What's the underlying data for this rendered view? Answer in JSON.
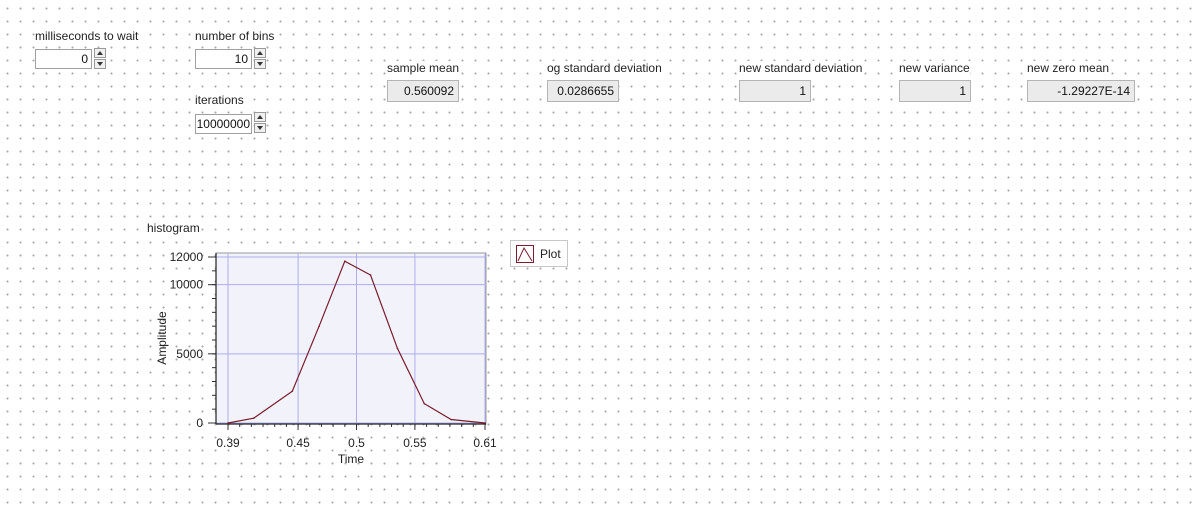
{
  "controls": {
    "ms_wait": {
      "label": "milliseconds to wait",
      "value": "0"
    },
    "num_bins": {
      "label": "number of bins",
      "value": "10"
    },
    "iterations": {
      "label": "iterations",
      "value": "10000000"
    }
  },
  "indicators": {
    "sample_mean": {
      "label": "sample mean",
      "value": "0.560092"
    },
    "og_std": {
      "label": "og standard deviation",
      "value": "0.0286655"
    },
    "new_std": {
      "label": "new standard deviation",
      "value": "1"
    },
    "new_var": {
      "label": "new variance",
      "value": "1"
    },
    "new_zero_mean": {
      "label": "new zero mean",
      "value": "-1.29227E-14"
    }
  },
  "histogram": {
    "label": "histogram"
  },
  "legend": {
    "label": "Plot",
    "icon": "plot-line-icon"
  },
  "colors": {
    "plot_line": "#7a1c2c",
    "plot_bg": "#f2f2fb",
    "grid": "#aeaeee"
  },
  "chart_data": {
    "type": "line",
    "xlabel": "Time",
    "ylabel": "Amplitude",
    "xlim": [
      0.39,
      0.61
    ],
    "ylim": [
      0,
      12000
    ],
    "x_ticks": [
      "0.39",
      "0.45",
      "0.5",
      "0.55",
      "0.61"
    ],
    "y_ticks": [
      "0",
      "5000",
      "10000",
      "12000"
    ],
    "grid": true,
    "series": [
      {
        "name": "Plot",
        "x": [
          0.39,
          0.412,
          0.445,
          0.468,
          0.49,
          0.512,
          0.535,
          0.558,
          0.581,
          0.61
        ],
        "y": [
          0,
          350,
          2300,
          7000,
          11700,
          10700,
          5400,
          1400,
          250,
          0
        ]
      }
    ]
  }
}
